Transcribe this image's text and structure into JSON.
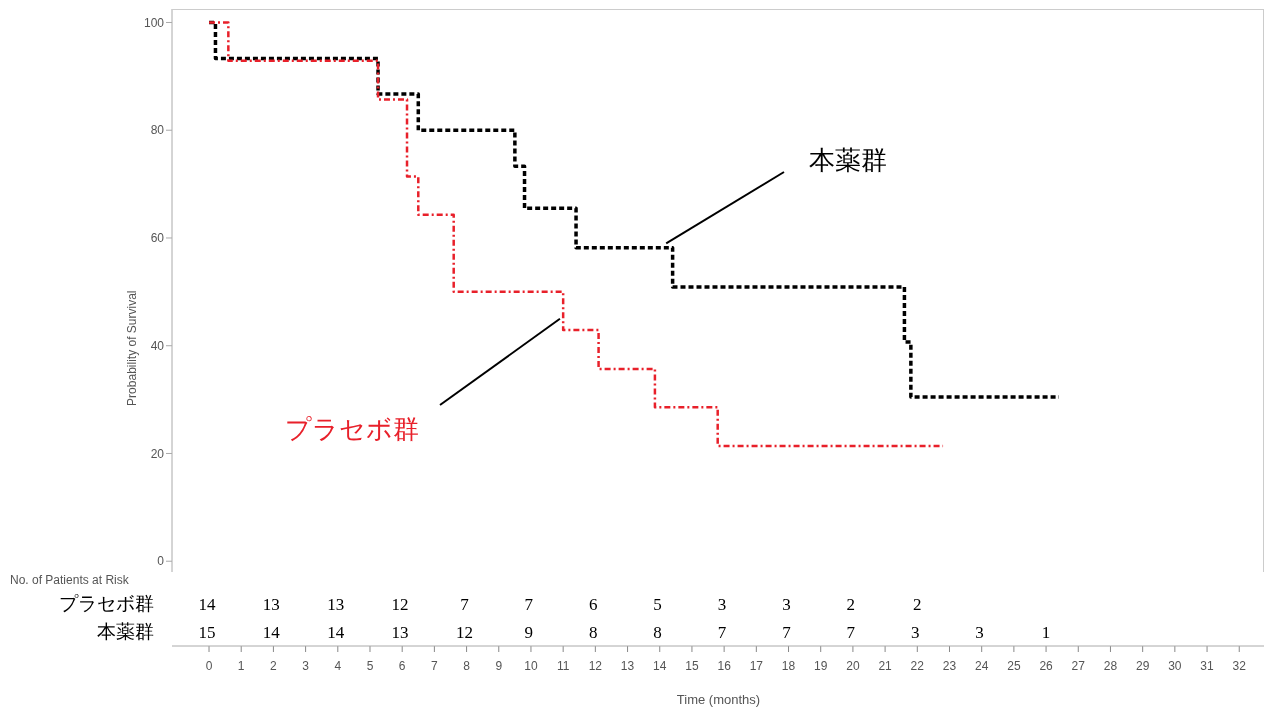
{
  "chart_data": {
    "type": "step",
    "xlabel": "Time (months)",
    "ylabel": "Probability of Survival",
    "xlim": [
      -1.15,
      32.8
    ],
    "ylim": [
      -2,
      102.5
    ],
    "xticks": [
      0,
      1,
      2,
      3,
      4,
      5,
      6,
      7,
      8,
      9,
      10,
      11,
      12,
      13,
      14,
      15,
      16,
      17,
      18,
      19,
      20,
      21,
      22,
      23,
      24,
      25,
      26,
      27,
      28,
      29,
      30,
      31,
      32
    ],
    "yticks": [
      0,
      20,
      40,
      60,
      80,
      100
    ],
    "series": [
      {
        "name": "プラセボ群",
        "color": "#e8202a",
        "line_style": "dotted",
        "x": [
          0,
          0.6,
          5.25,
          6.15,
          6.5,
          7.6,
          11.0,
          12.1,
          13.85,
          15.8,
          22.8
        ],
        "values": [
          100,
          92.9,
          85.7,
          71.4,
          64.3,
          50,
          42.9,
          35.7,
          28.6,
          21.4,
          21.4
        ]
      },
      {
        "name": "本薬群",
        "color": "#000000",
        "line_style": "dashed",
        "x": [
          0,
          0.2,
          5.25,
          6.5,
          9.5,
          9.8,
          11.4,
          14.4,
          21.6,
          21.8,
          26.4
        ],
        "values": [
          100,
          93.3,
          86.7,
          80,
          73.3,
          65.5,
          58.2,
          50.9,
          40.7,
          30.5,
          30.5
        ]
      }
    ],
    "annotations": [
      "No. of Patients at Risk",
      "14 13 13 12 7 7 6 5 3 3 2 2",
      "15 14 14 13 12 9 8 8 7 7 7 3 3 1"
    ]
  }
}
